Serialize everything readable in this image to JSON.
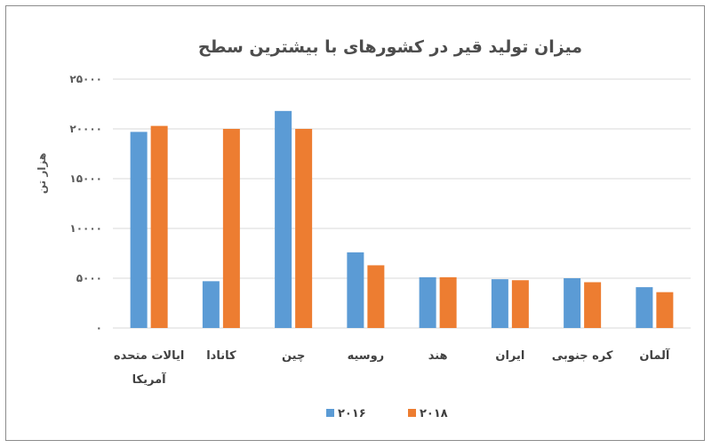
{
  "chart_data": {
    "type": "bar",
    "title": "میزان تولید قیر در کشورهای با بیشترین سطح",
    "ylabel": "هزار تن",
    "xlabel": "",
    "ylim": [
      0,
      25000
    ],
    "y_ticks": [
      0,
      5000,
      10000,
      15000,
      20000,
      25000
    ],
    "y_tick_labels": [
      "0",
      "5000",
      "10000",
      "15000",
      "20000",
      "25000"
    ],
    "grid": true,
    "legend_position": "bottom",
    "categories": [
      [
        "ایالات متحده",
        "آمریکا"
      ],
      [
        "کانادا"
      ],
      [
        "چین"
      ],
      [
        "روسیه"
      ],
      [
        "هند"
      ],
      [
        "ایران"
      ],
      [
        "کره جنوبی"
      ],
      [
        "آلمان"
      ]
    ],
    "series": [
      {
        "name": "2016",
        "color": "#5b9bd5",
        "values": [
          19700,
          4700,
          21800,
          7600,
          5100,
          4900,
          5000,
          4100
        ]
      },
      {
        "name": "2018",
        "color": "#ed7d31",
        "values": [
          20300,
          20000,
          20000,
          6300,
          5100,
          4800,
          4600,
          3600
        ]
      }
    ]
  }
}
